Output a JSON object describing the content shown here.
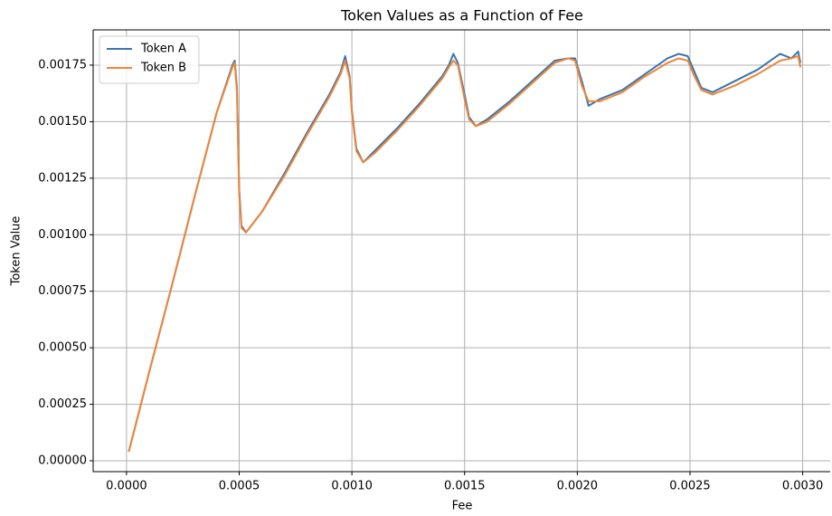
{
  "chart_data": {
    "type": "line",
    "title": "Token Values as a Function of Fee",
    "x_label": "Fee",
    "y_label": "Token Value",
    "x": [
      1e-05,
      0.0001,
      0.0002,
      0.0003,
      0.0004,
      0.00047,
      0.00048,
      0.00049,
      0.0005,
      0.00051,
      0.00053,
      0.0006,
      0.0007,
      0.0008,
      0.0009,
      0.00095,
      0.00097,
      0.00099,
      0.001,
      0.00102,
      0.00105,
      0.0011,
      0.0012,
      0.0013,
      0.0014,
      0.00143,
      0.00145,
      0.00147,
      0.0015,
      0.00152,
      0.00155,
      0.0016,
      0.0017,
      0.0018,
      0.0019,
      0.00196,
      0.00199,
      0.00202,
      0.00205,
      0.0021,
      0.0022,
      0.0023,
      0.0024,
      0.00245,
      0.00249,
      0.00252,
      0.00255,
      0.0026,
      0.0027,
      0.0028,
      0.0029,
      0.00295,
      0.00298,
      0.00299
    ],
    "series": [
      {
        "name": "Token A",
        "color": "#3b75af",
        "values": [
          4e-05,
          0.00039,
          0.00077,
          0.00116,
          0.00154,
          0.00175,
          0.00177,
          0.00165,
          0.0012,
          0.00104,
          0.00101,
          0.0011,
          0.00127,
          0.00145,
          0.00162,
          0.00172,
          0.00179,
          0.0017,
          0.00155,
          0.00138,
          0.00132,
          0.00137,
          0.00147,
          0.00158,
          0.0017,
          0.00175,
          0.0018,
          0.00176,
          0.00162,
          0.00152,
          0.00148,
          0.00151,
          0.00159,
          0.00168,
          0.00177,
          0.00178,
          0.00178,
          0.00168,
          0.00157,
          0.0016,
          0.00164,
          0.00171,
          0.00178,
          0.0018,
          0.00179,
          0.00172,
          0.00165,
          0.00163,
          0.00168,
          0.00173,
          0.0018,
          0.00178,
          0.00181,
          0.00176
        ]
      },
      {
        "name": "Token B",
        "color": "#ef8636",
        "values": [
          4e-05,
          0.00039,
          0.00077,
          0.00116,
          0.00154,
          0.00174,
          0.00176,
          0.00163,
          0.00118,
          0.00103,
          0.00101,
          0.0011,
          0.00126,
          0.00144,
          0.00161,
          0.00171,
          0.00177,
          0.00169,
          0.00154,
          0.00137,
          0.00132,
          0.00136,
          0.00146,
          0.00157,
          0.00169,
          0.00174,
          0.00177,
          0.00175,
          0.0016,
          0.00151,
          0.00148,
          0.0015,
          0.00158,
          0.00167,
          0.00176,
          0.00178,
          0.00177,
          0.00166,
          0.00159,
          0.00159,
          0.00163,
          0.0017,
          0.00176,
          0.00178,
          0.00177,
          0.0017,
          0.00164,
          0.00162,
          0.00166,
          0.00171,
          0.00177,
          0.00178,
          0.00179,
          0.00174
        ]
      }
    ],
    "xlim": [
      -0.000148,
      0.003122
    ],
    "ylim": [
      -4.8e-05,
      0.001906
    ],
    "xticks": [
      {
        "value": 0,
        "label": "0.0000"
      },
      {
        "value": 0.0005,
        "label": "0.0005"
      },
      {
        "value": 0.001,
        "label": "0.0010"
      },
      {
        "value": 0.0015,
        "label": "0.0015"
      },
      {
        "value": 0.002,
        "label": "0.0020"
      },
      {
        "value": 0.0025,
        "label": "0.0025"
      },
      {
        "value": 0.003,
        "label": "0.0030"
      }
    ],
    "yticks": [
      {
        "value": 0,
        "label": "0.00000"
      },
      {
        "value": 0.00025,
        "label": "0.00025"
      },
      {
        "value": 0.0005,
        "label": "0.00050"
      },
      {
        "value": 0.00075,
        "label": "0.00075"
      },
      {
        "value": 0.001,
        "label": "0.00100"
      },
      {
        "value": 0.00125,
        "label": "0.00125"
      },
      {
        "value": 0.0015,
        "label": "0.00150"
      },
      {
        "value": 0.00175,
        "label": "0.00175"
      }
    ],
    "grid": true,
    "legend": "upper left"
  }
}
